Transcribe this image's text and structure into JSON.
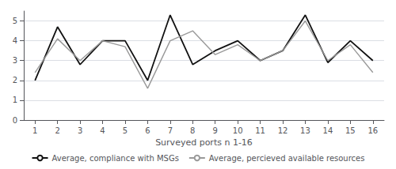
{
  "chart_data": {
    "type": "line",
    "xlabel": "Surveyed ports n 1-16",
    "x": [
      1,
      2,
      3,
      4,
      5,
      6,
      7,
      8,
      9,
      10,
      11,
      12,
      13,
      14,
      15,
      16
    ],
    "series": [
      {
        "name": "Average, compliance with MSGs",
        "color": "#111111",
        "values": [
          2.0,
          4.7,
          2.8,
          4.0,
          4.0,
          2.0,
          5.3,
          2.8,
          3.5,
          4.0,
          3.0,
          3.5,
          5.3,
          2.9,
          4.0,
          3.0
        ]
      },
      {
        "name": "Average, percieved available resources",
        "color": "#999999",
        "values": [
          2.4,
          4.1,
          3.0,
          4.0,
          3.7,
          1.6,
          4.0,
          4.5,
          3.3,
          3.8,
          3.0,
          3.5,
          5.0,
          3.0,
          3.8,
          2.4
        ]
      }
    ],
    "xlim": [
      0.5,
      16.5
    ],
    "xticks": [
      1,
      2,
      3,
      4,
      5,
      6,
      7,
      8,
      9,
      10,
      11,
      12,
      13,
      14,
      15,
      16
    ],
    "ylim": [
      0,
      5.5
    ],
    "yticks": [
      0,
      1,
      2,
      3,
      4,
      5
    ],
    "grid": true,
    "legend": "bottom"
  }
}
